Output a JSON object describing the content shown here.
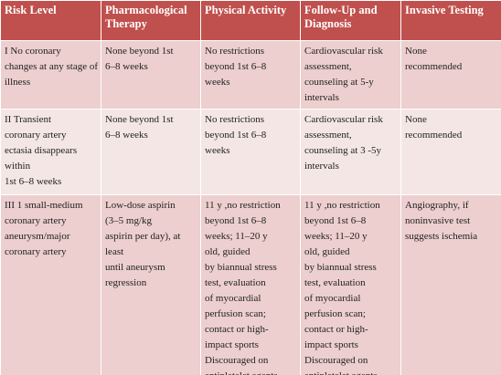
{
  "table": {
    "header": [
      "Risk Level",
      "Pharmacological Therapy",
      "Physical Activity",
      "Follow-Up and Diagnosis",
      "Invasive Testing"
    ],
    "rows": [
      [
        [
          "I  No coronary",
          "changes at any stage of",
          "illness"
        ],
        [
          "None beyond 1st",
          "6–8 weeks"
        ],
        [
          "No restrictions",
          "beyond 1st 6–8",
          "weeks"
        ],
        [
          "Cardiovascular risk",
          "assessment,",
          "counseling at 5-y",
          "intervals"
        ],
        [
          "None",
          "recommended"
        ]
      ],
      [
        [
          "II Transient",
          "coronary artery",
          "ectasia disappears",
          "within",
          "1st 6–8 weeks"
        ],
        [
          "None beyond 1st",
          "6–8 weeks"
        ],
        [
          "No restrictions",
          "beyond 1st 6–8",
          "weeks"
        ],
        [
          "Cardiovascular risk",
          "assessment,",
          "counseling at 3 -5y",
          "intervals"
        ],
        [
          "None",
          "recommended"
        ]
      ],
      [
        [
          "III  1 small-medium",
          "coronary artery",
          "aneurysm/major",
          "coronary artery"
        ],
        [
          "Low-dose aspirin",
          "(3–5 mg/kg",
          "aspirin per day), at",
          "least",
          "until aneurysm",
          "regression"
        ],
        [
          "11 y ,no restriction",
          "beyond 1st 6–8",
          "weeks; 11–20 y",
          "old,  guided",
          "by biannual stress",
          "test, evaluation",
          "of myocardial",
          "perfusion scan;",
          "contact or high-",
          "impact sports",
          "Discouraged  on",
          "antiplatelet agents"
        ],
        [
          "11 y ,no restriction",
          "beyond 1st 6–8",
          "weeks; 11–20 y",
          "old,  guided",
          "by biannual stress",
          "test, evaluation",
          "of myocardial",
          "perfusion scan;",
          "contact or high-",
          "impact sports",
          "Discouraged  on",
          "antiplatelet agents"
        ],
        [
          "Angiography, if",
          "noninvasive test",
          "suggests ischemia"
        ]
      ]
    ]
  }
}
